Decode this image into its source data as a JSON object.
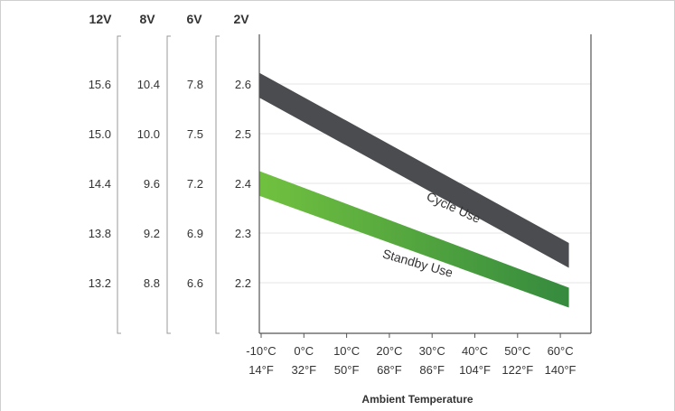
{
  "chart_data": {
    "type": "area",
    "xlabel": "Ambient Temperature",
    "x_ticks": [
      {
        "c": "-10°C",
        "f": "14°F"
      },
      {
        "c": "0°C",
        "f": "32°F"
      },
      {
        "c": "10°C",
        "f": "50°F"
      },
      {
        "c": "20°C",
        "f": "68°F"
      },
      {
        "c": "30°C",
        "f": "86°F"
      },
      {
        "c": "40°C",
        "f": "104°F"
      },
      {
        "c": "50°C",
        "f": "122°F"
      },
      {
        "c": "60°C",
        "f": "140°F"
      }
    ],
    "xlim_c": [
      -10,
      60
    ],
    "ylim": [
      2.1,
      2.65
    ],
    "y_axes": [
      {
        "header": "12V",
        "ticks": [
          "15.6",
          "15.0",
          "14.4",
          "13.8",
          "13.2"
        ]
      },
      {
        "header": "8V",
        "ticks": [
          "10.4",
          "10.0",
          "9.6",
          "9.2",
          "8.8"
        ]
      },
      {
        "header": "6V",
        "ticks": [
          "7.8",
          "7.5",
          "7.2",
          "6.9",
          "6.6"
        ]
      },
      {
        "header": "2V",
        "ticks": [
          "2.6",
          "2.5",
          "2.4",
          "2.3",
          "2.2"
        ]
      }
    ],
    "y_tick_values": [
      2.6,
      2.5,
      2.4,
      2.3,
      2.2
    ],
    "grid": true,
    "series": [
      {
        "name": "Cycle Use",
        "color": "#4a4c4f",
        "x": [
          -12,
          62
        ],
        "upper": [
          2.63,
          2.28
        ],
        "lower": [
          2.58,
          2.23
        ]
      },
      {
        "name": "Standby Use",
        "color_start": "#72c23f",
        "color_end": "#358a3e",
        "x": [
          -12,
          62
        ],
        "upper": [
          2.43,
          2.19
        ],
        "lower": [
          2.38,
          2.15
        ]
      }
    ]
  }
}
